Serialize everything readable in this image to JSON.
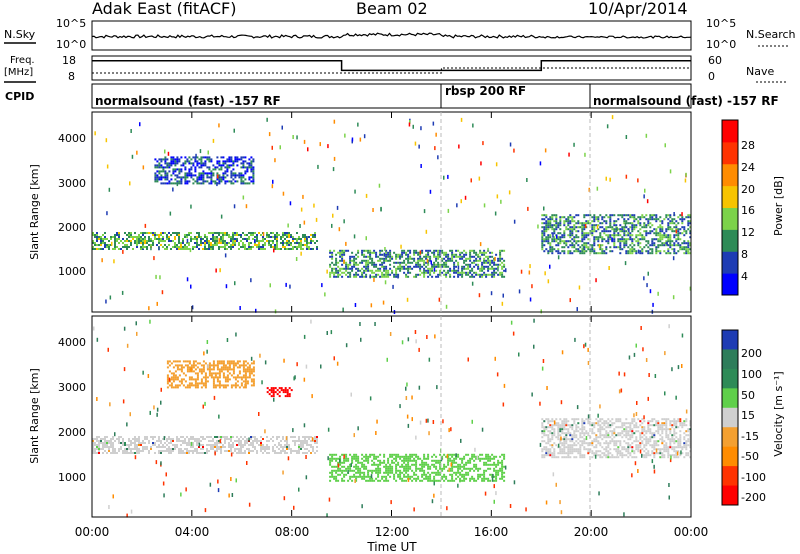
{
  "header": {
    "station": "Adak East (fitACF)",
    "beam": "Beam 02",
    "date": "10/Apr/2014"
  },
  "noise_panel": {
    "left_label": "N.Sky",
    "right_label": "N.Search",
    "left_ticks": [
      "10^5",
      "10^0"
    ],
    "right_ticks": [
      "10^5",
      "10^0"
    ]
  },
  "freq_panel": {
    "left_label_1": "Freq.",
    "left_label_2": "[MHz]",
    "left_ticks": [
      "18",
      "8"
    ],
    "right_label": "Nave",
    "right_ticks": [
      "60",
      "0"
    ]
  },
  "cpid_panel": {
    "label": "CPID",
    "segments": [
      "normalsound (fast) -157 RF",
      "rbsp 200 RF",
      "normalsound (fast) -157 RF"
    ]
  },
  "power_panel": {
    "ylabel": "Slant Range [km]",
    "yticks": [
      "1000",
      "2000",
      "3000",
      "4000"
    ],
    "colorbar_label": "Power [dB]",
    "colorbar_ticks": [
      "4",
      "8",
      "12",
      "16",
      "20",
      "24",
      "28"
    ],
    "colors": [
      "#0000ff",
      "#1e3cb4",
      "#2e8b57",
      "#7cd34a",
      "#f7c400",
      "#ff8c00",
      "#ff3300",
      "#ff0000"
    ]
  },
  "velocity_panel": {
    "ylabel": "Slant Range [km]",
    "yticks": [
      "1000",
      "2000",
      "3000",
      "4000"
    ],
    "colorbar_label": "Velocity [m s⁻¹]",
    "colorbar_ticks": [
      "200",
      "100",
      "50",
      "15",
      "-15",
      "-50",
      "-100",
      "-200"
    ],
    "colors": [
      "#1e3cb4",
      "#2e7d5a",
      "#2e8b57",
      "#5fd04a",
      "#cfcfcf",
      "#f4a030",
      "#ff8c00",
      "#ff3300",
      "#ff0000"
    ]
  },
  "x_axis": {
    "ticks": [
      "00:00",
      "04:00",
      "08:00",
      "12:00",
      "16:00",
      "20:00",
      "00:00"
    ],
    "label": "Time UT"
  },
  "chart_data": [
    {
      "type": "heatmap",
      "name": "Power",
      "x_range_hours": [
        0,
        24
      ],
      "ylim": [
        0,
        4500
      ],
      "colorbar_range": [
        0,
        32
      ],
      "bands": [
        {
          "t0": 0.0,
          "t1": 9.0,
          "r0": 1400,
          "r1": 1800,
          "level": 12
        },
        {
          "t0": 2.5,
          "t1": 6.5,
          "r0": 2900,
          "r1": 3500,
          "level": 6
        },
        {
          "t0": 9.5,
          "t1": 16.5,
          "r0": 800,
          "r1": 1400,
          "level": 10
        },
        {
          "t0": 18.0,
          "t1": 24.0,
          "r0": 1300,
          "r1": 2200,
          "level": 10
        }
      ]
    },
    {
      "type": "heatmap",
      "name": "Velocity",
      "x_range_hours": [
        0,
        24
      ],
      "ylim": [
        0,
        4500
      ],
      "colorbar_range": [
        -200,
        200
      ],
      "bands": [
        {
          "t0": 0.0,
          "t1": 9.0,
          "r0": 1400,
          "r1": 1800,
          "v": 0
        },
        {
          "t0": 3.0,
          "t1": 6.5,
          "r0": 2900,
          "r1": 3500,
          "v": -40
        },
        {
          "t0": 7.0,
          "t1": 8.0,
          "r0": 2700,
          "r1": 2900,
          "v": -200
        },
        {
          "t0": 9.5,
          "t1": 16.5,
          "r0": 800,
          "r1": 1400,
          "v": 30
        },
        {
          "t0": 18.0,
          "t1": 24.0,
          "r0": 1300,
          "r1": 2200,
          "v": 0
        }
      ]
    },
    {
      "type": "line",
      "name": "Freq",
      "units": "MHz",
      "ylim": [
        8,
        18
      ],
      "x": [
        0,
        10,
        10,
        18,
        18,
        24
      ],
      "y": [
        16,
        16,
        12,
        12,
        16,
        16
      ]
    }
  ]
}
